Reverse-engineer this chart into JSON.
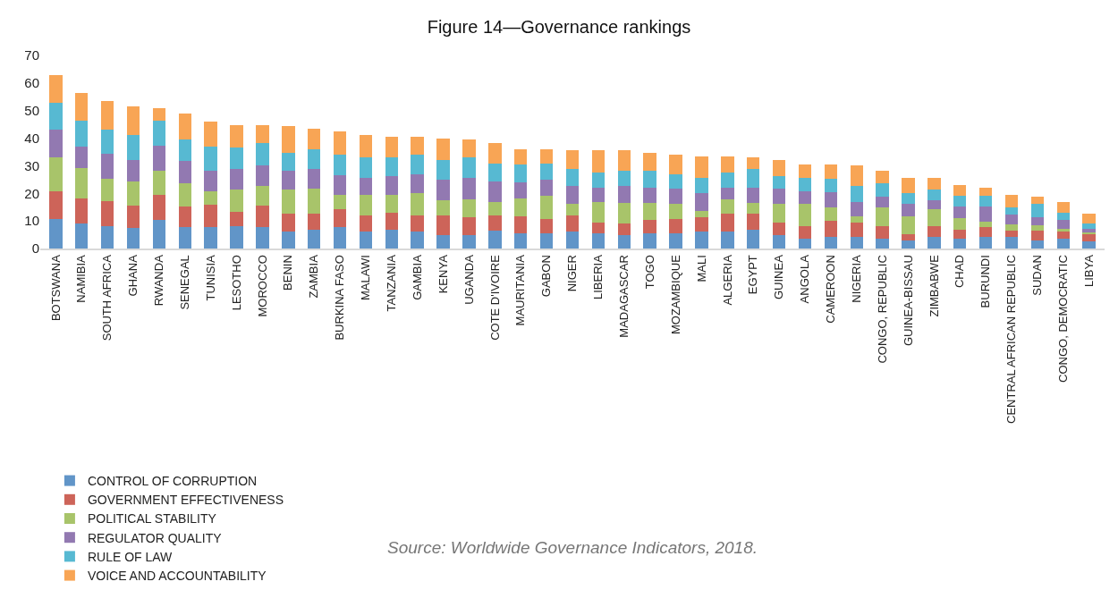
{
  "chart_data": {
    "type": "bar",
    "title": "Figure 14—Governance rankings",
    "stacked": true,
    "categories": [
      "BOTSWANA",
      "NAMIBIA",
      "SOUTH AFRICA",
      "GHANA",
      "RWANDA",
      "SENEGAL",
      "TUNISIA",
      "LESOTHO",
      "MOROCCO",
      "BENIN",
      "ZAMBIA",
      "BURKINA FASO",
      "MALAWI",
      "TANZANIA",
      "GAMBIA",
      "KENYA",
      "UGANDA",
      "COTE D'IVOIRE",
      "MAURITANIA",
      "GABON",
      "NIGER",
      "LIBERIA",
      "MADAGASCAR",
      "TOGO",
      "MOZAMBIQUE",
      "MALI",
      "ALGERIA",
      "EGYPT",
      "GUINEA",
      "ANGOLA",
      "CAMEROON",
      "NIGERIA",
      "CONGO, REPUBLIC",
      "GUINEA-BISSAU",
      "ZIMBABWE",
      "CHAD",
      "BURUNDI",
      "CENTRAL AFRICAN REPUBLIC",
      "SUDAN",
      "CONGO, DEMOCRATIC",
      "LIBYA"
    ],
    "series": [
      {
        "name": "CONTROL OF CORRUPTION",
        "color": "#6195c8",
        "values": [
          10.8,
          9.2,
          8.2,
          7.4,
          10.5,
          7.9,
          7.9,
          8.2,
          7.9,
          6.1,
          6.7,
          7.9,
          6.1,
          6.7,
          6.2,
          4.9,
          4.9,
          6.6,
          5.6,
          5.4,
          6.2,
          5.6,
          4.9,
          5.6,
          5.4,
          6.2,
          6.2,
          6.7,
          4.8,
          3.5,
          4.3,
          4.3,
          3.5,
          3.0,
          4.1,
          3.5,
          4.1,
          4.3,
          3.0,
          3.5,
          2.7
        ]
      },
      {
        "name": "GOVERNMENT EFFECTIVENESS",
        "color": "#cd6459",
        "values": [
          10.0,
          9.1,
          9.1,
          8.3,
          9.1,
          7.4,
          8.1,
          5.2,
          7.8,
          6.6,
          6.0,
          6.5,
          6.0,
          6.4,
          5.9,
          7.2,
          6.5,
          5.5,
          6.2,
          5.4,
          5.9,
          3.9,
          4.3,
          4.9,
          5.4,
          5.2,
          6.5,
          6.0,
          4.7,
          4.7,
          5.8,
          5.2,
          4.7,
          2.3,
          4.1,
          3.4,
          3.7,
          2.3,
          3.6,
          2.7,
          2.6
        ]
      },
      {
        "name": "POLITICAL STABILITY",
        "color": "#a8c46a",
        "values": [
          12.2,
          10.9,
          7.9,
          8.7,
          8.6,
          8.2,
          4.9,
          7.9,
          6.9,
          8.6,
          9.1,
          5.2,
          7.5,
          6.5,
          7.9,
          5.3,
          6.5,
          4.9,
          6.5,
          8.4,
          4.0,
          7.5,
          7.4,
          6.1,
          5.3,
          2.1,
          5.2,
          3.9,
          6.6,
          7.9,
          4.7,
          2.3,
          6.6,
          6.5,
          6.2,
          4.0,
          1.8,
          2.2,
          1.7,
          0.9,
          0.4
        ]
      },
      {
        "name": "REGULATOR QUALITY",
        "color": "#9279b1",
        "values": [
          10.0,
          7.6,
          9.1,
          7.7,
          9.1,
          8.1,
          7.3,
          7.4,
          7.7,
          6.9,
          6.9,
          6.9,
          6.0,
          6.5,
          6.9,
          7.4,
          7.7,
          7.4,
          5.6,
          5.6,
          6.5,
          5.2,
          6.0,
          5.6,
          5.7,
          6.5,
          4.3,
          5.6,
          5.7,
          4.8,
          5.7,
          5.2,
          3.9,
          4.3,
          3.0,
          4.4,
          5.7,
          3.4,
          3.1,
          3.4,
          1.3
        ]
      },
      {
        "name": "RULE OF LAW",
        "color": "#57b9d2",
        "values": [
          9.9,
          9.6,
          8.7,
          9.1,
          9.1,
          7.8,
          8.7,
          7.8,
          7.9,
          6.5,
          7.3,
          7.4,
          7.4,
          6.8,
          7.0,
          7.3,
          7.3,
          6.4,
          6.5,
          6.0,
          6.1,
          5.2,
          5.6,
          6.0,
          5.1,
          5.6,
          5.5,
          6.5,
          4.3,
          4.7,
          4.7,
          5.6,
          4.8,
          3.9,
          3.9,
          3.9,
          3.9,
          2.6,
          4.7,
          2.6,
          2.2
        ]
      },
      {
        "name": "VOICE AND ACCOUNTABILITY",
        "color": "#f8a555",
        "values": [
          10.1,
          9.9,
          10.4,
          10.4,
          4.4,
          9.6,
          9.1,
          8.2,
          6.5,
          9.6,
          7.4,
          8.6,
          8.2,
          7.6,
          6.5,
          7.8,
          6.5,
          7.4,
          5.6,
          5.2,
          6.9,
          8.2,
          7.4,
          6.5,
          7.0,
          7.8,
          5.7,
          4.3,
          6.0,
          4.8,
          5.2,
          7.4,
          4.7,
          5.6,
          4.3,
          3.9,
          3.0,
          4.8,
          2.6,
          3.9,
          3.5
        ]
      }
    ],
    "ylim": [
      0,
      70
    ],
    "yticks": [
      0,
      10,
      20,
      30,
      40,
      50,
      60,
      70
    ],
    "legend": "bottom",
    "annotations": [
      "Source: Worldwide Governance Indicators, 2018."
    ]
  }
}
